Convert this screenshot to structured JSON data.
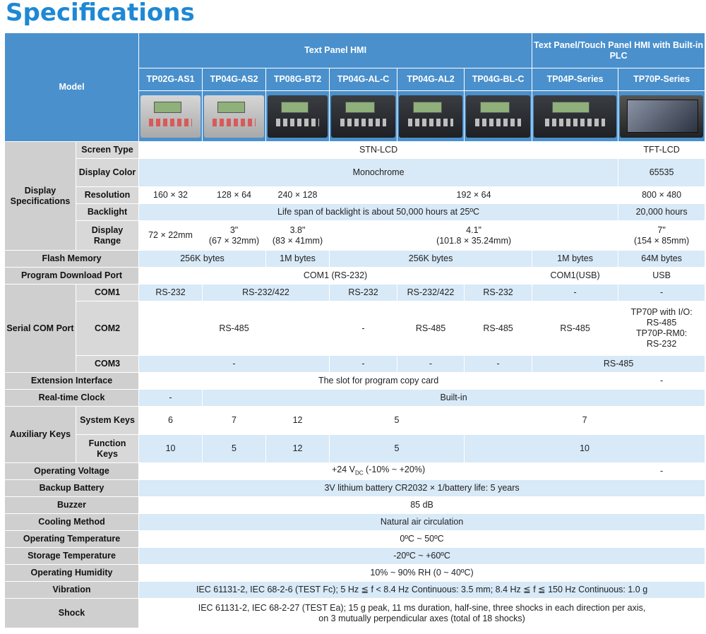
{
  "title": "Specifications",
  "header": {
    "group1": "Text Panel HMI",
    "group2": "Text Panel/Touch Panel HMI with Built-in PLC",
    "model_label": "Model",
    "models": [
      "TP02G-AS1",
      "TP04G-AS2",
      "TP08G-BT2",
      "TP04G-AL-C",
      "TP04G-AL2",
      "TP04G-BL-C",
      "TP04P-Series",
      "TP70P-Series"
    ]
  },
  "rows": {
    "display": {
      "label": "Display Specifications",
      "screen_type": {
        "label": "Screen Type",
        "v1": "STN-LCD",
        "v2": "TFT-LCD"
      },
      "display_color": {
        "label": "Display Color",
        "v1": "Monochrome",
        "v2": "65535"
      },
      "resolution": {
        "label": "Resolution",
        "v1": "160 × 32",
        "v2": "128 × 64",
        "v3": "240 × 128",
        "v4": "192 × 64",
        "v5": "800 × 480"
      },
      "backlight": {
        "label": "Backlight",
        "v1": "Life span of backlight is about 50,000 hours at 25ºC",
        "v2": "20,000 hours"
      },
      "display_range": {
        "label": "Display Range",
        "v1": "72 × 22mm",
        "v2a": "3\"",
        "v2b": "(67 × 32mm)",
        "v3a": "3.8\"",
        "v3b": "(83 × 41mm)",
        "v4a": "4.1\"",
        "v4b": "(101.8 × 35.24mm)",
        "v5a": "7\"",
        "v5b": "(154 × 85mm)"
      }
    },
    "flash": {
      "label": "Flash Memory",
      "v1": "256K bytes",
      "v2": "1M bytes",
      "v3": "256K bytes",
      "v4": "1M bytes",
      "v5": "64M bytes"
    },
    "download": {
      "label": "Program Download Port",
      "v1": "COM1 (RS-232)",
      "v2": "COM1(USB)",
      "v3": "USB"
    },
    "serial": {
      "label": "Serial COM Port",
      "com1": {
        "label": "COM1",
        "v1": "RS-232",
        "v2": "RS-232/422",
        "v3": "RS-232",
        "v4": "RS-232/422",
        "v5": "RS-232",
        "v6": "-",
        "v7": "-"
      },
      "com2": {
        "label": "COM2",
        "v1": "RS-485",
        "v2": "-",
        "v3": "RS-485",
        "v4": "RS-485",
        "v5": "RS-485",
        "v6a": "TP70P with I/O:",
        "v6b": "RS-485",
        "v6c": "TP70P-RM0:",
        "v6d": "RS-232"
      },
      "com3": {
        "label": "COM3",
        "v1": "-",
        "v2": "-",
        "v3": "-",
        "v4": "-",
        "v5": "RS-485"
      }
    },
    "extension": {
      "label": "Extension Interface",
      "v1": "The slot for program copy card",
      "v2": "-"
    },
    "rtc": {
      "label": "Real-time Clock",
      "v1": "-",
      "v2": "Built-in"
    },
    "aux": {
      "label": "Auxiliary Keys",
      "system": {
        "label": "System Keys",
        "v1": "6",
        "v2": "7",
        "v3": "12",
        "v4": "5",
        "v5": "7",
        "v6": "-"
      },
      "function": {
        "label": "Function Keys",
        "v1": "10",
        "v2": "5",
        "v3": "12",
        "v4": "5",
        "v5": "10",
        "v6": "-"
      }
    },
    "voltage": {
      "label": "Operating Voltage",
      "v1_pre": "+24 V",
      "v1_sub": "DC",
      "v1_post": " (-10% ~ +20%)",
      "v2": "-"
    },
    "battery": {
      "label": "Backup Battery",
      "v1": "3V lithium battery CR2032 × 1/battery life: 5 years"
    },
    "buzzer": {
      "label": "Buzzer",
      "v1": "85 dB"
    },
    "cooling": {
      "label": "Cooling Method",
      "v1": "Natural air circulation"
    },
    "op_temp": {
      "label": "Operating Temperature",
      "v1": "0ºC ~ 50ºC"
    },
    "st_temp": {
      "label": "Storage Temperature",
      "v1": "-20ºC ~ +60ºC"
    },
    "humidity": {
      "label": "Operating Humidity",
      "v1": "10% ~ 90% RH (0 ~ 40ºC)"
    },
    "vibration": {
      "label": "Vibration",
      "v1": "IEC 61131-2, IEC 68-2-6 (TEST Fc); 5 Hz ≦ f < 8.4 Hz Continuous: 3.5 mm; 8.4 Hz ≦ f ≦ 150 Hz Continuous: 1.0 g"
    },
    "shock": {
      "label": "Shock",
      "v1a": "IEC 61131-2, IEC 68-2-27 (TEST Ea); 15 g peak, 11 ms duration, half-sine, three shocks in each direction per axis,",
      "v1b": "on 3 mutually perpendicular axes (total of 18 shocks)"
    }
  }
}
